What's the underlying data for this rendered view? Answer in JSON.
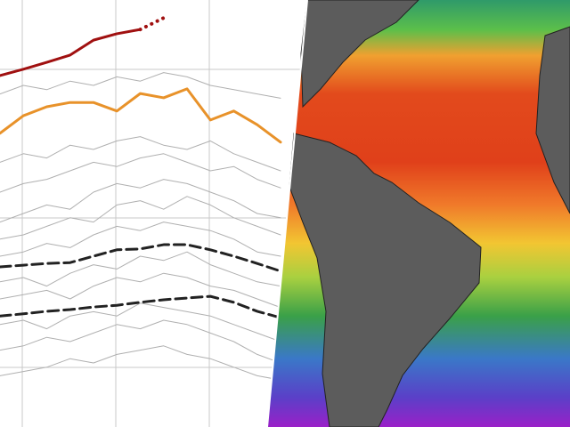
{
  "chart_data": {
    "type": "line",
    "x": [
      0,
      1,
      2,
      3,
      4,
      5,
      6,
      7,
      8,
      9,
      10,
      11,
      12
    ],
    "xlim": [
      0,
      12
    ],
    "ylim": [
      0,
      100
    ],
    "series": [
      {
        "color": "#b0b0b0",
        "line_style": "solid",
        "values": [
          62,
          64,
          63,
          66,
          65,
          67,
          68,
          66,
          65,
          67,
          64,
          62,
          60
        ]
      },
      {
        "color": "#b0b0b0",
        "line_style": "solid",
        "values": [
          55,
          57,
          58,
          60,
          62,
          61,
          63,
          64,
          62,
          60,
          61,
          58,
          56
        ]
      },
      {
        "color": "#b0b0b0",
        "line_style": "solid",
        "values": [
          48,
          50,
          52,
          51,
          55,
          57,
          56,
          58,
          57,
          55,
          53,
          50,
          49
        ]
      },
      {
        "color": "#b0b0b0",
        "line_style": "solid",
        "values": [
          44,
          45,
          47,
          49,
          48,
          52,
          53,
          51,
          54,
          52,
          49,
          47,
          45
        ]
      },
      {
        "color": "#b0b0b0",
        "line_style": "solid",
        "values": [
          40,
          41,
          43,
          42,
          45,
          47,
          46,
          48,
          47,
          46,
          44,
          41,
          40
        ]
      },
      {
        "color": "#b0b0b0",
        "line_style": "solid",
        "values": [
          34,
          35,
          33,
          36,
          38,
          37,
          40,
          39,
          41,
          38,
          36,
          34,
          33
        ]
      },
      {
        "color": "#b0b0b0",
        "line_style": "solid",
        "values": [
          30,
          31,
          32,
          30,
          33,
          35,
          34,
          36,
          35,
          33,
          32,
          30,
          28
        ]
      },
      {
        "color": "#b0b0b0",
        "line_style": "solid",
        "values": [
          24,
          25,
          23,
          26,
          27,
          26,
          29,
          28,
          27,
          26,
          24,
          22,
          20
        ]
      },
      {
        "color": "#b0b0b0",
        "line_style": "solid",
        "values": [
          18,
          19,
          21,
          20,
          22,
          24,
          23,
          25,
          24,
          22,
          20,
          17,
          15
        ]
      },
      {
        "color": "#b0b0b0",
        "line_style": "solid",
        "values": [
          12,
          13,
          14,
          16,
          15,
          17,
          18,
          19,
          17,
          16,
          14,
          12,
          11
        ]
      },
      {
        "color": "#b0b0b0",
        "line_style": "solid",
        "values": [
          78,
          80,
          79,
          81,
          80,
          82,
          81,
          83,
          82,
          80,
          79,
          78,
          77
        ]
      },
      {
        "color": "#e8922a",
        "line_style": "solid",
        "values": [
          68.8,
          72.9,
          75,
          76,
          76,
          74,
          78.1,
          77.1,
          79.2,
          71.9,
          74,
          70.8,
          66.7
        ]
      },
      {
        "color": "#222222",
        "line_style": "dashed",
        "values": [
          37.5,
          37.9,
          38.3,
          38.5,
          40,
          41.5,
          41.7,
          42.7,
          42.7,
          41.5,
          40,
          38.3,
          36.5
        ]
      },
      {
        "color": "#222222",
        "line_style": "dashed",
        "values": [
          26,
          26.5,
          27.1,
          27.5,
          28.1,
          28.5,
          29.2,
          29.8,
          30.2,
          30.6,
          29.2,
          27.1,
          25.6
        ]
      },
      {
        "color": "#a01010",
        "line_style": "solid",
        "values": [
          82.3,
          83.8,
          85.4,
          87.1,
          90.6,
          92.1,
          93.1,
          null,
          null,
          null,
          null,
          null,
          null
        ]
      },
      {
        "color": "#a01010",
        "line_style": "dotted",
        "values": [
          null,
          null,
          null,
          null,
          null,
          null,
          93.1,
          95.8,
          null,
          null,
          null,
          null,
          null
        ]
      }
    ]
  }
}
